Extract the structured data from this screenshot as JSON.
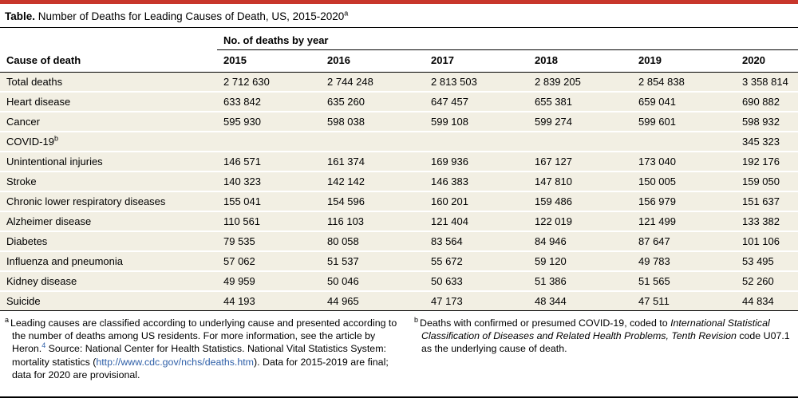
{
  "colors": {
    "accent_red": "#C8362B",
    "row_beige": "#F2EFE3",
    "link_blue": "#2E5FA8"
  },
  "title": {
    "bold": "Table.",
    "rest": " Number of Deaths for Leading Causes of Death, US, 2015-2020",
    "sup": "a"
  },
  "table": {
    "col_group": "No. of deaths by year",
    "row_header": "Cause of death",
    "years": [
      "2015",
      "2016",
      "2017",
      "2018",
      "2019",
      "2020"
    ],
    "rows": [
      {
        "cause": "Total deaths",
        "sup": "",
        "values": [
          "2 712 630",
          "2 744 248",
          "2 813 503",
          "2 839 205",
          "2 854 838",
          "3 358 814"
        ]
      },
      {
        "cause": "Heart disease",
        "sup": "",
        "values": [
          "633 842",
          "635 260",
          "647 457",
          "655 381",
          "659 041",
          "690 882"
        ]
      },
      {
        "cause": "Cancer",
        "sup": "",
        "values": [
          "595 930",
          "598 038",
          "599 108",
          "599 274",
          "599 601",
          "598 932"
        ]
      },
      {
        "cause": "COVID-19",
        "sup": "b",
        "values": [
          "",
          "",
          "",
          "",
          "",
          "345 323"
        ]
      },
      {
        "cause": "Unintentional injuries",
        "sup": "",
        "values": [
          "146 571",
          "161 374",
          "169 936",
          "167 127",
          "173 040",
          "192 176"
        ]
      },
      {
        "cause": "Stroke",
        "sup": "",
        "values": [
          "140 323",
          "142 142",
          "146 383",
          "147 810",
          "150 005",
          "159 050"
        ]
      },
      {
        "cause": "Chronic lower respiratory diseases",
        "sup": "",
        "values": [
          "155 041",
          "154 596",
          "160 201",
          "159 486",
          "156 979",
          "151 637"
        ]
      },
      {
        "cause": "Alzheimer disease",
        "sup": "",
        "values": [
          "110 561",
          "116 103",
          "121 404",
          "122 019",
          "121 499",
          "133 382"
        ]
      },
      {
        "cause": "Diabetes",
        "sup": "",
        "values": [
          "79 535",
          "80 058",
          "83 564",
          "84 946",
          "87 647",
          "101 106"
        ]
      },
      {
        "cause": "Influenza and pneumonia",
        "sup": "",
        "values": [
          "57 062",
          "51 537",
          "55 672",
          "59 120",
          "49 783",
          "53 495"
        ]
      },
      {
        "cause": "Kidney disease",
        "sup": "",
        "values": [
          "49 959",
          "50 046",
          "50 633",
          "51 386",
          "51 565",
          "52 260"
        ]
      },
      {
        "cause": "Suicide",
        "sup": "",
        "values": [
          "44 193",
          "44 965",
          "47 173",
          "48 344",
          "47 511",
          "44 834"
        ]
      }
    ]
  },
  "footnotes": {
    "a": {
      "marker": "a",
      "text_before_ref": "Leading causes are classified according to underlying cause and presented according to the number of deaths among US residents. For more information, see the article by Heron.",
      "ref": "4",
      "text_after_ref": " Source: National Center for Health Statistics. National Vital Statistics System: mortality statistics (",
      "link": "http://www.cdc.gov/nchs/deaths.htm",
      "text_after_link": "). Data for 2015-2019 are final; data for 2020 are provisional."
    },
    "b": {
      "marker": "b",
      "text_before_italic": "Deaths with confirmed or presumed COVID-19, coded to ",
      "italic": "International Statistical Classification of Diseases and Related Health Problems, Tenth Revision",
      "text_after_italic": " code U07.1 as the underlying cause of death."
    }
  }
}
